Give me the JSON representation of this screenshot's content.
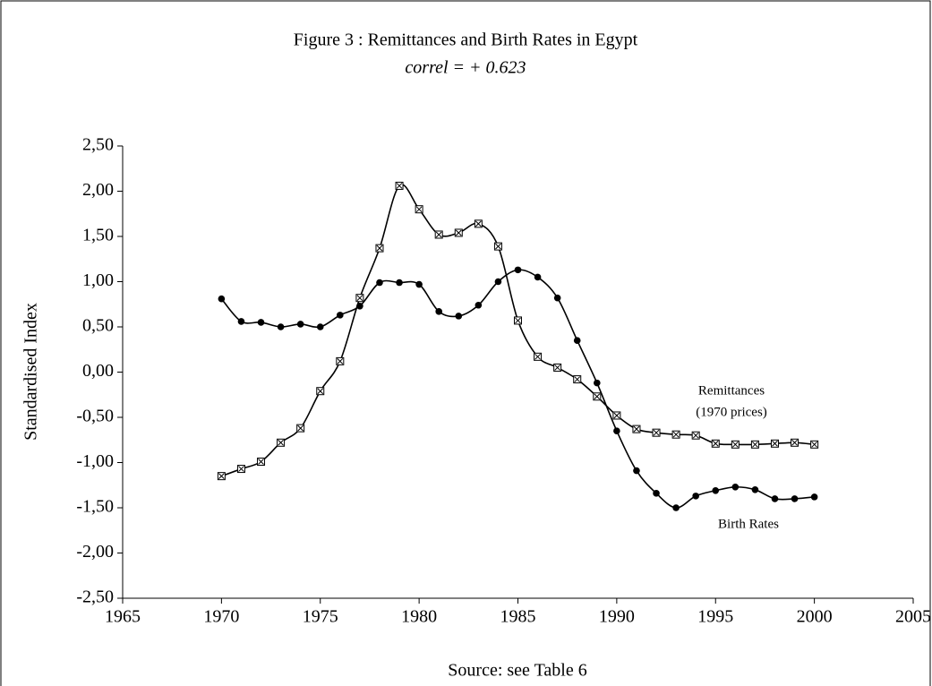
{
  "chart_data": {
    "type": "line",
    "title": "Figure 3 : Remittances and Birth Rates in Egypt",
    "subtitle": "correl = + 0.623",
    "y_label": "Standardised Index",
    "x_label": "Source: see Table 6",
    "annotations": [
      "(1970 prices)"
    ],
    "x": [
      1970,
      1971,
      1972,
      1973,
      1974,
      1975,
      1976,
      1977,
      1978,
      1979,
      1980,
      1981,
      1982,
      1983,
      1984,
      1985,
      1986,
      1987,
      1988,
      1989,
      1990,
      1991,
      1992,
      1993,
      1994,
      1995,
      1996,
      1997,
      1998,
      1999,
      2000
    ],
    "series": [
      {
        "name": "Remittances",
        "color": "#000000",
        "marker": "square-x",
        "values": [
          -1.15,
          -1.07,
          -0.99,
          -0.78,
          -0.62,
          -0.21,
          0.12,
          0.82,
          1.37,
          2.06,
          1.8,
          1.52,
          1.54,
          1.64,
          1.39,
          0.57,
          0.17,
          0.05,
          -0.08,
          -0.27,
          -0.48,
          -0.63,
          -0.67,
          -0.69,
          -0.7,
          -0.79,
          -0.8,
          -0.8,
          -0.79,
          -0.78,
          -0.8
        ]
      },
      {
        "name": "Birth Rates",
        "color": "#000000",
        "marker": "circle",
        "values": [
          0.81,
          0.56,
          0.55,
          0.5,
          0.53,
          0.5,
          0.63,
          0.73,
          0.99,
          0.99,
          0.97,
          0.67,
          0.62,
          0.74,
          1.0,
          1.13,
          1.05,
          0.82,
          0.35,
          -0.12,
          -0.65,
          -1.09,
          -1.34,
          -1.5,
          -1.37,
          -1.31,
          -1.27,
          -1.3,
          -1.4,
          -1.4,
          -1.38
        ]
      }
    ],
    "xlim": [
      1965,
      2005
    ],
    "xticks": [
      1965,
      1970,
      1975,
      1980,
      1985,
      1990,
      1995,
      2000,
      2005
    ],
    "ylim": [
      -2.5,
      2.5
    ],
    "yticks": [
      {
        "value": -2.5,
        "label": "-2,50"
      },
      {
        "value": -2,
        "label": "-2,00"
      },
      {
        "value": -1.5,
        "label": "-1,50"
      },
      {
        "value": -1,
        "label": "-1,00"
      },
      {
        "value": -0.5,
        "label": "-0,50"
      },
      {
        "value": 0,
        "label": "0,00"
      },
      {
        "value": 0.5,
        "label": "0,50"
      },
      {
        "value": 1,
        "label": "1,00"
      },
      {
        "value": 1.5,
        "label": "1,50"
      },
      {
        "value": 2,
        "label": "2,00"
      },
      {
        "value": 2.5,
        "label": "2,50"
      }
    ],
    "grid": false
  }
}
